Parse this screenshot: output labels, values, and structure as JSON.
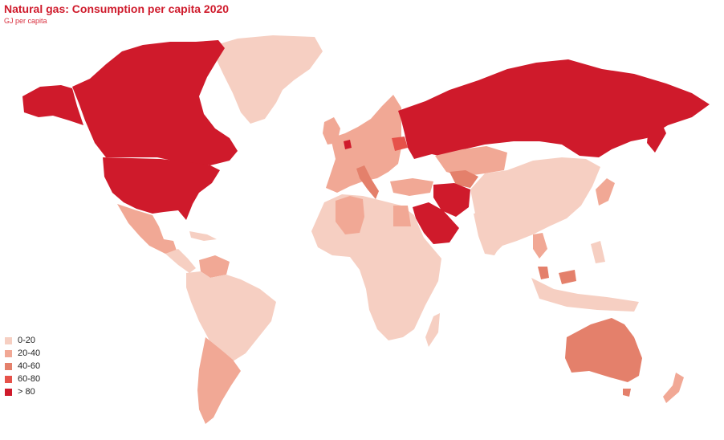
{
  "header": {
    "title": "Natural gas: Consumption per capita 2020",
    "subtitle": "GJ per capita"
  },
  "legend": {
    "items": [
      {
        "label": "0-20",
        "color": "#f6cfc2"
      },
      {
        "label": "20-40",
        "color": "#f1a895"
      },
      {
        "label": "40-60",
        "color": "#e4806b"
      },
      {
        "label": "60-80",
        "color": "#e6524a"
      },
      {
        "label": "> 80",
        "color": "#cf1a2b"
      }
    ]
  },
  "map_data": {
    "type": "choropleth",
    "metric": "Natural gas consumption per capita 2020 (GJ per capita)",
    "regions": [
      {
        "name": "Canada",
        "class": "> 80"
      },
      {
        "name": "United States",
        "class": "> 80"
      },
      {
        "name": "Russia",
        "class": "> 80"
      },
      {
        "name": "Saudi Arabia",
        "class": "> 80"
      },
      {
        "name": "Iran",
        "class": "> 80"
      },
      {
        "name": "Turkmenistan",
        "class": "> 80"
      },
      {
        "name": "Netherlands",
        "class": "> 80"
      },
      {
        "name": "Belarus",
        "class": "60-80"
      },
      {
        "name": "Australia",
        "class": "40-60"
      },
      {
        "name": "Italy",
        "class": "40-60"
      },
      {
        "name": "Uzbekistan",
        "class": "40-60"
      },
      {
        "name": "Malaysia",
        "class": "40-60"
      },
      {
        "name": "Mexico",
        "class": "20-40"
      },
      {
        "name": "Argentina",
        "class": "20-40"
      },
      {
        "name": "Algeria",
        "class": "20-40"
      },
      {
        "name": "Venezuela",
        "class": "20-40"
      },
      {
        "name": "Kazakhstan",
        "class": "20-40"
      },
      {
        "name": "Europe (most)",
        "class": "20-40"
      },
      {
        "name": "Thailand",
        "class": "20-40"
      },
      {
        "name": "Egypt",
        "class": "20-40"
      },
      {
        "name": "Japan",
        "class": "20-40"
      },
      {
        "name": "South Korea",
        "class": "20-40"
      },
      {
        "name": "New Zealand",
        "class": "20-40"
      },
      {
        "name": "Greenland",
        "class": "0-20"
      },
      {
        "name": "Brazil",
        "class": "0-20"
      },
      {
        "name": "Africa (most)",
        "class": "0-20"
      },
      {
        "name": "China",
        "class": "0-20"
      },
      {
        "name": "India",
        "class": "0-20"
      },
      {
        "name": "Mongolia",
        "class": "0-20"
      },
      {
        "name": "Indonesia",
        "class": "0-20"
      }
    ]
  }
}
